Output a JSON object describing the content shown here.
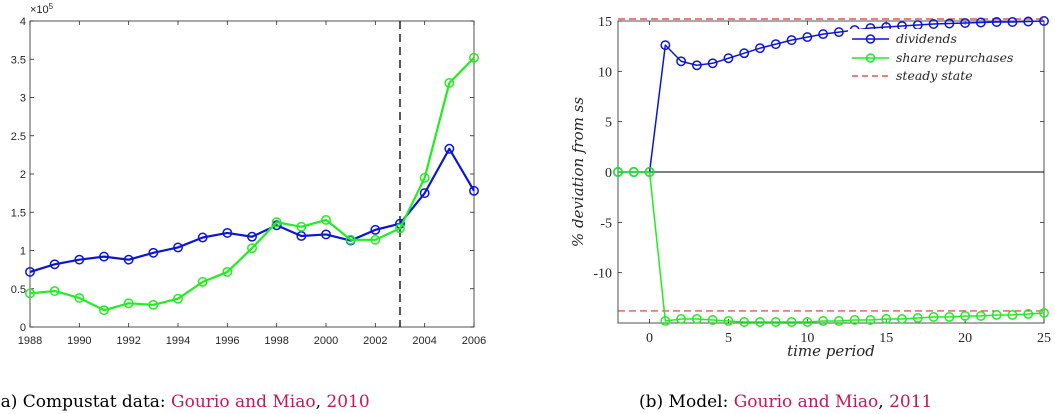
{
  "colors": {
    "dividends": "#0b15d6",
    "repurchases": "#1fee1f",
    "steady": "#e03030",
    "cite": "#c2185b",
    "axis": "#262626",
    "dashed_line": "#000000"
  },
  "left_caption": {
    "prefix": "(a) Compustat data: ",
    "authors": "Gourio and Miao",
    "sep": ", ",
    "year": "2010"
  },
  "right_caption": {
    "prefix": "(b) Model: ",
    "authors": "Gourio and Miao",
    "sep": ", ",
    "year": "2011"
  },
  "chart_data": [
    {
      "type": "line",
      "xlim": [
        1988,
        2006
      ],
      "ylim": [
        0,
        4
      ],
      "y_exponent_label": "×10",
      "y_exponent_power": "5",
      "xticks": [
        1988,
        1990,
        1992,
        1994,
        1996,
        1998,
        2000,
        2002,
        2004,
        2006
      ],
      "xtick_labels": [
        "1988",
        "1990",
        "1992",
        "1994",
        "1996",
        "1998",
        "2000",
        "2002",
        "2004",
        "2006"
      ],
      "yticks": [
        0,
        0.5,
        1,
        1.5,
        2,
        2.5,
        3,
        3.5,
        4
      ],
      "ytick_labels": [
        "0",
        "0.5",
        "1",
        "1.5",
        "2",
        "2.5",
        "3",
        "3.5",
        "4"
      ],
      "vline_x": 2003,
      "x": [
        1988,
        1989,
        1990,
        1991,
        1992,
        1993,
        1994,
        1995,
        1996,
        1997,
        1998,
        1999,
        2000,
        2001,
        2002,
        2003,
        2004,
        2005,
        2006
      ],
      "series": [
        {
          "key": "dividends",
          "values": [
            0.72,
            0.82,
            0.88,
            0.92,
            0.88,
            0.97,
            1.04,
            1.17,
            1.23,
            1.18,
            1.33,
            1.19,
            1.21,
            1.13,
            1.27,
            1.35,
            1.75,
            2.33,
            1.78
          ]
        },
        {
          "key": "repurchases",
          "values": [
            0.44,
            0.47,
            0.38,
            0.22,
            0.31,
            0.29,
            0.37,
            0.59,
            0.72,
            1.03,
            1.37,
            1.31,
            1.4,
            1.14,
            1.14,
            1.29,
            1.95,
            3.19,
            3.52
          ]
        }
      ]
    },
    {
      "type": "line",
      "xlim": [
        -2,
        25
      ],
      "ylim": [
        -15,
        15
      ],
      "xlabel": "time period",
      "ylabel": "% deviation from ss",
      "xticks": [
        0,
        5,
        10,
        15,
        20,
        25
      ],
      "xtick_labels": [
        "0",
        "5",
        "10",
        "15",
        "20",
        "25"
      ],
      "yticks": [
        15,
        10,
        5,
        0,
        -5,
        -10
      ],
      "ytick_labels": [
        "15",
        "10",
        "5",
        "0",
        "-5",
        "-10"
      ],
      "zero_line": true,
      "legend_position": "top-right",
      "x": [
        -2,
        -1,
        0,
        1,
        2,
        3,
        4,
        5,
        6,
        7,
        8,
        9,
        10,
        11,
        12,
        13,
        14,
        15,
        16,
        17,
        18,
        19,
        20,
        21,
        22,
        23,
        24,
        25
      ],
      "series": [
        {
          "key": "dividends",
          "name": "dividends",
          "values": [
            0,
            0,
            0,
            12.6,
            11.0,
            10.6,
            10.8,
            11.3,
            11.8,
            12.3,
            12.7,
            13.1,
            13.4,
            13.7,
            13.9,
            14.1,
            14.3,
            14.4,
            14.5,
            14.6,
            14.7,
            14.75,
            14.8,
            14.85,
            14.9,
            14.9,
            14.95,
            15.0
          ]
        },
        {
          "key": "repurchases",
          "name": "share repurchases",
          "values": [
            0,
            0,
            0,
            -14.8,
            -14.6,
            -14.6,
            -14.7,
            -14.8,
            -14.9,
            -14.9,
            -14.9,
            -14.9,
            -14.9,
            -14.8,
            -14.8,
            -14.7,
            -14.7,
            -14.6,
            -14.6,
            -14.5,
            -14.4,
            -14.4,
            -14.3,
            -14.3,
            -14.2,
            -14.2,
            -14.1,
            -14.0
          ]
        }
      ],
      "steady_state": {
        "name": "steady state",
        "values": [
          15.2,
          -13.8
        ]
      }
    }
  ]
}
